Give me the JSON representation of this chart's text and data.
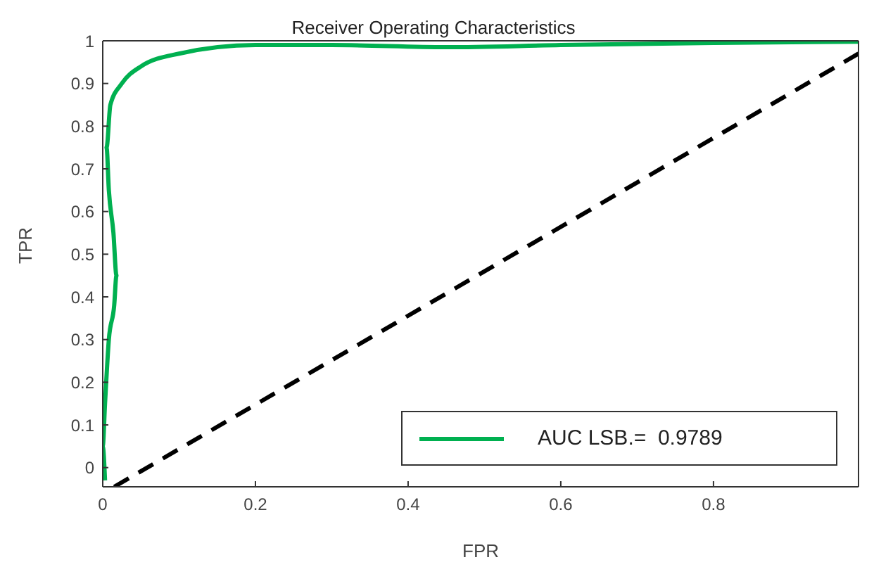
{
  "chart_data": {
    "type": "line",
    "title": "Receiver Operating Characteristics",
    "xlabel": "FPR",
    "ylabel": "TPR",
    "xlim": [
      0,
      0.99
    ],
    "xticks": [
      0,
      0.2,
      0.4,
      0.6,
      0.8
    ],
    "ylim": [
      -0.045,
      1
    ],
    "yticks": [
      0,
      0.1,
      0.2,
      0.3,
      0.4,
      0.5,
      0.6,
      0.7,
      0.8,
      0.9,
      1
    ],
    "grid": false,
    "legend": "bottom right",
    "marker": "none",
    "series": [
      {
        "name": "AUC LSB.=  0.9789",
        "color": "#00b050",
        "line_style": "solid",
        "x": [
          0.003,
          0.0,
          0.003,
          0.008,
          0.015,
          0.018,
          0.014,
          0.008,
          0.005,
          0.01,
          0.025,
          0.05,
          0.1,
          0.2,
          0.3,
          0.45,
          0.6,
          0.8,
          0.99
        ],
        "values": [
          -0.03,
          0.05,
          0.15,
          0.3,
          0.38,
          0.45,
          0.55,
          0.65,
          0.75,
          0.85,
          0.9,
          0.94,
          0.97,
          0.99,
          0.99,
          0.985,
          0.99,
          0.995,
          0.998
        ]
      },
      {
        "color": "#000000",
        "line_style": "dashed",
        "x": [
          0.015,
          0.99
        ],
        "values": [
          -0.045,
          0.97
        ]
      }
    ]
  }
}
